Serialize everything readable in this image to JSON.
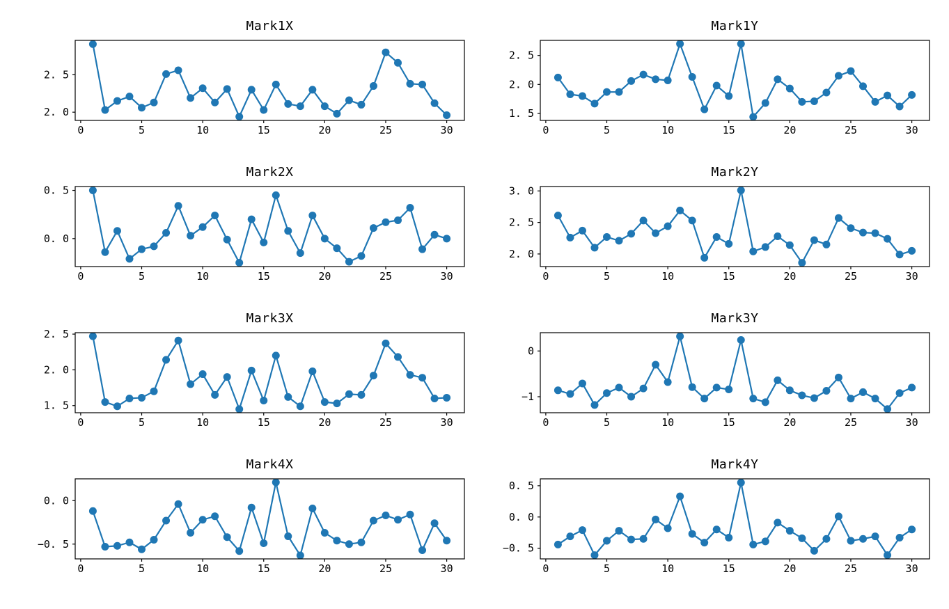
{
  "figure": {
    "background": "#ffffff",
    "accent_color": "#1f77b4",
    "spine_color": "#000000",
    "tick_color": "#000000"
  },
  "axes_common": {
    "x": [
      1,
      2,
      3,
      4,
      5,
      6,
      7,
      8,
      9,
      10,
      11,
      12,
      13,
      14,
      15,
      16,
      17,
      18,
      19,
      20,
      21,
      22,
      23,
      24,
      25,
      26,
      27,
      28,
      29,
      30
    ],
    "xlim": [
      -0.45,
      31.45
    ],
    "xticks": [
      {
        "v": 0,
        "label": "0"
      },
      {
        "v": 5,
        "label": "5"
      },
      {
        "v": 10,
        "label": "10"
      },
      {
        "v": 15,
        "label": "15"
      },
      {
        "v": 20,
        "label": "20"
      },
      {
        "v": 25,
        "label": "25"
      },
      {
        "v": 30,
        "label": "30"
      }
    ],
    "grid": false,
    "legend": "none"
  },
  "chart_data": [
    {
      "type": "line",
      "title": "Mark1X",
      "ylim": [
        1.89,
        2.96
      ],
      "yticks": [
        {
          "v": 2.5,
          "label": "2. 5"
        },
        {
          "v": 2.0,
          "label": "2. 0"
        }
      ],
      "y": [
        2.91,
        2.03,
        2.15,
        2.21,
        2.06,
        2.13,
        2.51,
        2.56,
        2.19,
        2.32,
        2.13,
        2.31,
        1.94,
        2.3,
        2.03,
        2.37,
        2.11,
        2.08,
        2.3,
        2.08,
        1.98,
        2.16,
        2.1,
        2.35,
        2.8,
        2.66,
        2.38,
        2.37,
        2.12,
        1.96
      ]
    },
    {
      "type": "line",
      "title": "Mark1Y",
      "ylim": [
        1.38,
        2.76
      ],
      "yticks": [
        {
          "v": 2.5,
          "label": "2. 5"
        },
        {
          "v": 2.0,
          "label": "2. 0"
        },
        {
          "v": 1.5,
          "label": "1. 5"
        }
      ],
      "y": [
        2.12,
        1.83,
        1.8,
        1.67,
        1.87,
        1.87,
        2.06,
        2.17,
        2.09,
        2.07,
        2.7,
        2.13,
        1.57,
        1.98,
        1.8,
        2.7,
        1.44,
        1.68,
        2.09,
        1.93,
        1.7,
        1.71,
        1.86,
        2.15,
        2.23,
        1.97,
        1.7,
        1.81,
        1.62,
        1.82
      ]
    },
    {
      "type": "line",
      "title": "Mark2X",
      "ylim": [
        -0.29,
        0.54
      ],
      "yticks": [
        {
          "v": 0.5,
          "label": "0. 5"
        },
        {
          "v": 0.0,
          "label": "0. 0"
        }
      ],
      "y": [
        0.5,
        -0.14,
        0.08,
        -0.21,
        -0.11,
        -0.08,
        0.06,
        0.34,
        0.03,
        0.12,
        0.24,
        -0.01,
        -0.25,
        0.2,
        -0.04,
        0.45,
        0.08,
        -0.15,
        0.24,
        0.0,
        -0.1,
        -0.24,
        -0.18,
        0.11,
        0.17,
        0.19,
        0.32,
        -0.11,
        0.04,
        0.0
      ]
    },
    {
      "type": "line",
      "title": "Mark2Y",
      "ylim": [
        1.8,
        3.07
      ],
      "yticks": [
        {
          "v": 3.0,
          "label": "3. 0"
        },
        {
          "v": 2.5,
          "label": "2. 5"
        },
        {
          "v": 2.0,
          "label": "2. 0"
        }
      ],
      "y": [
        2.61,
        2.26,
        2.37,
        2.1,
        2.27,
        2.21,
        2.32,
        2.53,
        2.33,
        2.44,
        2.69,
        2.53,
        1.94,
        2.27,
        2.16,
        3.01,
        2.04,
        2.11,
        2.28,
        2.14,
        1.86,
        2.22,
        2.15,
        2.57,
        2.41,
        2.34,
        2.33,
        2.24,
        1.99,
        2.05
      ]
    },
    {
      "type": "line",
      "title": "Mark3X",
      "ylim": [
        1.4,
        2.52
      ],
      "yticks": [
        {
          "v": 2.5,
          "label": "2. 5"
        },
        {
          "v": 2.0,
          "label": "2. 0"
        },
        {
          "v": 1.5,
          "label": "1. 5"
        }
      ],
      "y": [
        2.47,
        1.55,
        1.49,
        1.6,
        1.61,
        1.7,
        2.14,
        2.41,
        1.8,
        1.94,
        1.65,
        1.9,
        1.45,
        1.99,
        1.57,
        2.2,
        1.62,
        1.49,
        1.98,
        1.55,
        1.53,
        1.66,
        1.65,
        1.92,
        2.37,
        2.18,
        1.93,
        1.89,
        1.6,
        1.61
      ]
    },
    {
      "type": "line",
      "title": "Mark3Y",
      "ylim": [
        -1.35,
        0.4
      ],
      "yticks": [
        {
          "v": 0,
          "label": "0"
        },
        {
          "v": -1,
          "label": "−1"
        }
      ],
      "y": [
        -0.86,
        -0.94,
        -0.71,
        -1.18,
        -0.92,
        -0.8,
        -1.0,
        -0.82,
        -0.3,
        -0.68,
        0.32,
        -0.79,
        -1.04,
        -0.8,
        -0.84,
        0.24,
        -1.04,
        -1.12,
        -0.64,
        -0.86,
        -0.97,
        -1.03,
        -0.87,
        -0.58,
        -1.04,
        -0.9,
        -1.04,
        -1.27,
        -0.92,
        -0.8
      ]
    },
    {
      "type": "line",
      "title": "Mark4X",
      "ylim": [
        -0.67,
        0.25
      ],
      "yticks": [
        {
          "v": 0.0,
          "label": "0. 0"
        },
        {
          "v": -0.5,
          "label": "−0. 5"
        }
      ],
      "y": [
        -0.12,
        -0.53,
        -0.52,
        -0.48,
        -0.56,
        -0.45,
        -0.23,
        -0.04,
        -0.37,
        -0.22,
        -0.18,
        -0.42,
        -0.58,
        -0.08,
        -0.49,
        0.21,
        -0.41,
        -0.63,
        -0.09,
        -0.37,
        -0.46,
        -0.5,
        -0.48,
        -0.23,
        -0.17,
        -0.22,
        -0.16,
        -0.57,
        -0.26,
        -0.46
      ]
    },
    {
      "type": "line",
      "title": "Mark4Y",
      "ylim": [
        -0.67,
        0.61
      ],
      "yticks": [
        {
          "v": 0.5,
          "label": "0. 5"
        },
        {
          "v": 0.0,
          "label": "0. 0"
        },
        {
          "v": -0.5,
          "label": "−0. 5"
        }
      ],
      "y": [
        -0.44,
        -0.31,
        -0.21,
        -0.61,
        -0.38,
        -0.22,
        -0.36,
        -0.35,
        -0.04,
        -0.18,
        0.33,
        -0.27,
        -0.41,
        -0.2,
        -0.33,
        0.55,
        -0.44,
        -0.39,
        -0.09,
        -0.22,
        -0.34,
        -0.54,
        -0.35,
        0.01,
        -0.38,
        -0.35,
        -0.31,
        -0.61,
        -0.33,
        -0.2
      ]
    }
  ]
}
